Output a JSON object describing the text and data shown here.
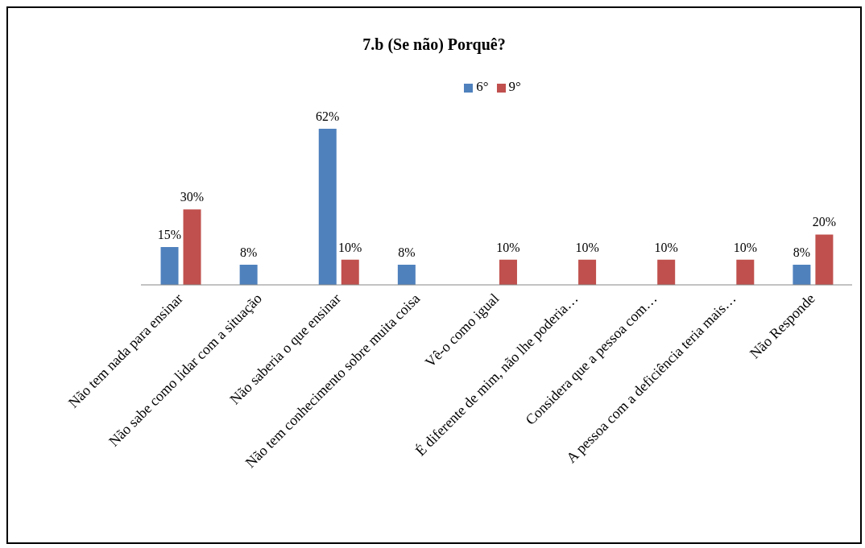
{
  "chart_data": {
    "type": "bar",
    "title": "7.b (Se não) Porquê?",
    "categories": [
      "Não tem nada para ensinar",
      "Não sabe como lidar com a situação",
      "Não saberia o que ensinar",
      "Não tem conhecimento sobre muita coisa",
      "Vê-o como igual",
      "É diferente de mim, não lhe poderia…",
      "Considera que a pessoa com…",
      "A pessoa com a deficiência  teria mais…",
      "Não Responde"
    ],
    "series": [
      {
        "name": "6°",
        "color": "#4f81bd",
        "values": [
          15,
          8,
          62,
          8,
          null,
          null,
          null,
          null,
          8
        ],
        "value_labels": [
          "15%",
          "8%",
          "62%",
          "8%",
          null,
          null,
          null,
          null,
          "8%"
        ]
      },
      {
        "name": "9°",
        "color": "#c0504d",
        "values": [
          30,
          null,
          10,
          null,
          10,
          10,
          10,
          10,
          20
        ],
        "value_labels": [
          "30%",
          null,
          "10%",
          null,
          "10%",
          "10%",
          "10%",
          "10%",
          "20%"
        ]
      }
    ],
    "legend": "top",
    "grid": false
  }
}
